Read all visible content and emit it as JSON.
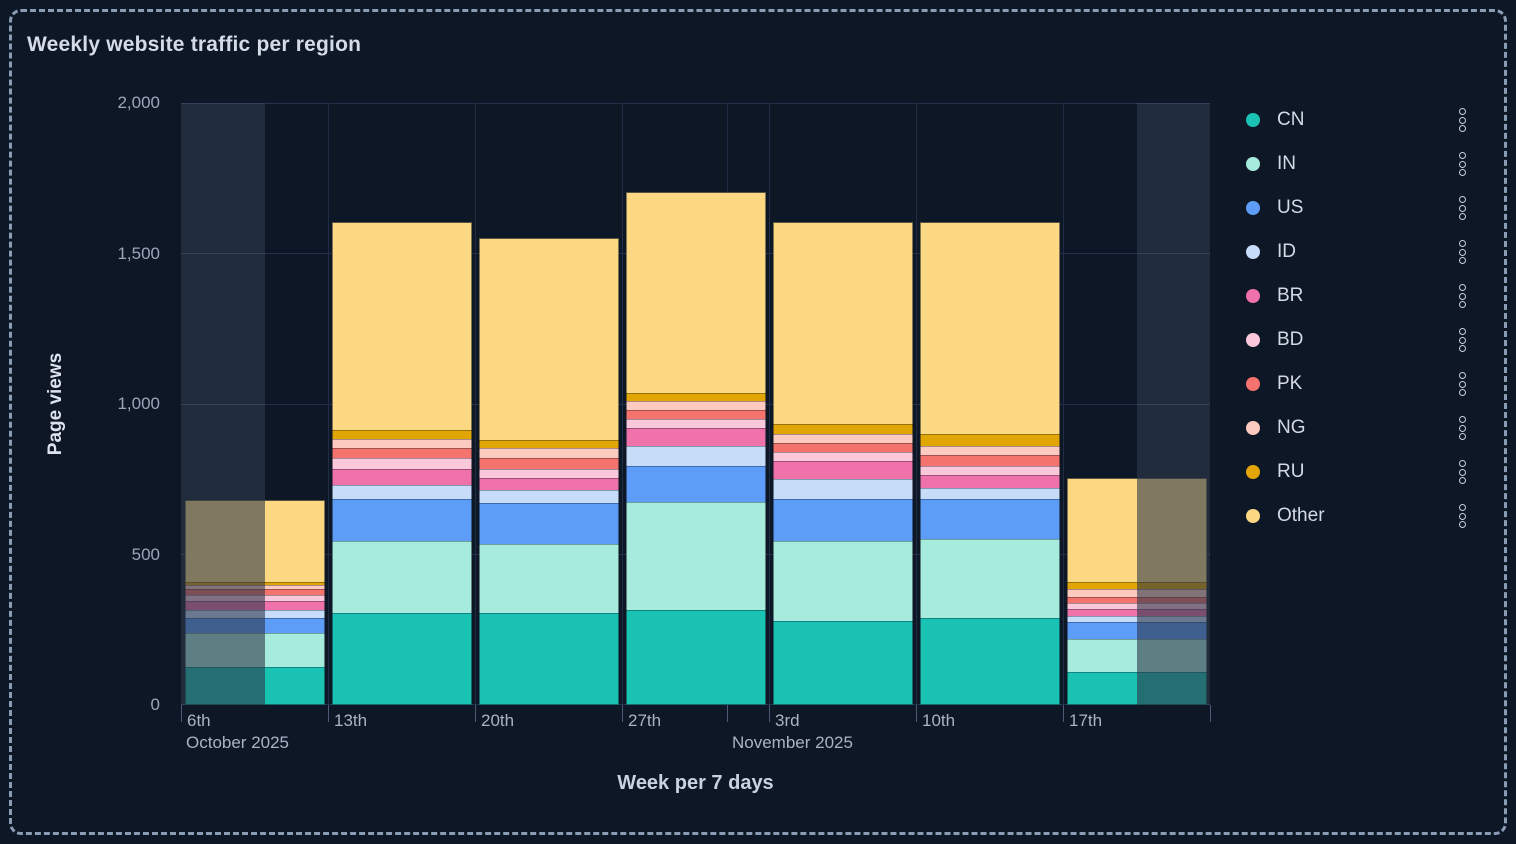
{
  "panel": {
    "title": "Weekly website traffic per region"
  },
  "chart_data": {
    "type": "bar",
    "stacked": true,
    "title": "Weekly website traffic per region",
    "xlabel": "Week per 7 days",
    "ylabel": "Page views",
    "ylim": [
      0,
      2000
    ],
    "y_ticks": [
      0,
      500,
      1000,
      1500,
      2000
    ],
    "y_tick_labels": [
      "0",
      "500",
      "1,000",
      "1,500",
      "2,000"
    ],
    "grid": true,
    "legend_position": "right",
    "categories": [
      "6th",
      "13th",
      "20th",
      "27th",
      "3rd",
      "10th",
      "17th"
    ],
    "month_labels": [
      {
        "text": "October 2025",
        "day_offset": 0
      },
      {
        "text": "November 2025",
        "day_offset": 26
      }
    ],
    "days_total": 49,
    "days_per_bin": 7,
    "month_boundary_day": 26,
    "series": [
      {
        "name": "CN",
        "color": "#1ac2b4",
        "values": [
          125,
          305,
          305,
          315,
          280,
          290,
          110
        ]
      },
      {
        "name": "IN",
        "color": "#a6ebdb",
        "values": [
          115,
          240,
          230,
          360,
          265,
          260,
          110
        ]
      },
      {
        "name": "US",
        "color": "#5d9df7",
        "values": [
          50,
          140,
          135,
          120,
          140,
          135,
          55
        ]
      },
      {
        "name": "ID",
        "color": "#c6dcf9",
        "values": [
          25,
          45,
          45,
          65,
          65,
          35,
          20
        ]
      },
      {
        "name": "BR",
        "color": "#ef72ab",
        "values": [
          30,
          55,
          40,
          60,
          60,
          45,
          25
        ]
      },
      {
        "name": "BD",
        "color": "#fbc7da",
        "values": [
          20,
          35,
          30,
          30,
          30,
          30,
          20
        ]
      },
      {
        "name": "PK",
        "color": "#f5736d",
        "values": [
          20,
          35,
          35,
          30,
          30,
          35,
          20
        ]
      },
      {
        "name": "NG",
        "color": "#fdcabf",
        "values": [
          15,
          30,
          35,
          30,
          30,
          30,
          25
        ]
      },
      {
        "name": "RU",
        "color": "#e2a604",
        "values": [
          10,
          30,
          25,
          25,
          35,
          40,
          25
        ]
      },
      {
        "name": "Other",
        "color": "#fbd881",
        "values": [
          270,
          690,
          670,
          670,
          670,
          705,
          345
        ]
      }
    ],
    "totals": [
      680,
      1605,
      1550,
      1705,
      1605,
      1605,
      755
    ],
    "partial_week_regions_days": [
      {
        "from_day": 0,
        "to_day": 4
      },
      {
        "from_day": 45.5,
        "to_day": 49
      }
    ]
  },
  "legend": {
    "menu_icon": "vertical-ellipsis-icon"
  },
  "colors": {
    "background": "#0e1726",
    "panel_border": "#8b9cb6",
    "gridline": "#26304a",
    "title_text": "#d5dce8",
    "axis_label_text": "#a9b3c5",
    "partial_region_fill": "rgba(142,158,187,0.15)"
  }
}
